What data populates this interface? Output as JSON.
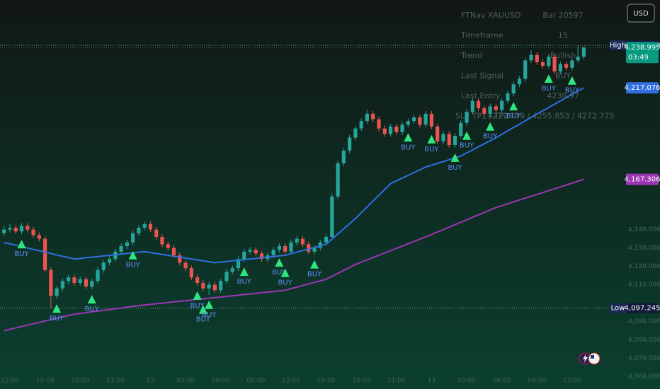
{
  "chart_data": {
    "type": "candlestick",
    "ylim": [
      4053.3,
      4264.85
    ],
    "yticks": [
      {
        "value": 4060,
        "label": "4,060.000"
      },
      {
        "value": 4070,
        "label": "4,070.000"
      },
      {
        "value": 4080,
        "label": "4,080.000"
      },
      {
        "value": 4090,
        "label": "4,090.000"
      },
      {
        "value": 4110,
        "label": "4,110.000"
      },
      {
        "value": 4120,
        "label": "4,120.000"
      },
      {
        "value": 4130,
        "label": "4,130.000"
      },
      {
        "value": 4140,
        "label": "4,140.000"
      }
    ],
    "grid": false,
    "up_color": "#26a69a",
    "down_color": "#ef5350",
    "categories": [
      null,
      "12:00",
      null,
      null,
      null,
      null,
      null,
      "15:00",
      null,
      null,
      null,
      null,
      null,
      "18:00",
      null,
      null,
      null,
      null,
      null,
      "21:00",
      null,
      null,
      null,
      null,
      null,
      "12",
      null,
      null,
      null,
      null,
      null,
      "03:00",
      null,
      null,
      null,
      null,
      null,
      "06:00",
      null,
      null,
      null,
      null,
      null,
      "09:00",
      null,
      null,
      null,
      null,
      null,
      "12:00",
      null,
      null,
      null,
      null,
      null,
      "15:00",
      null,
      null,
      null,
      null,
      null,
      "18:00",
      null,
      null,
      null,
      null,
      null,
      "21:00",
      null,
      null,
      null,
      null,
      null,
      "13",
      null,
      null,
      null,
      null,
      null,
      "03:00",
      null,
      null,
      null,
      null,
      null,
      "06:00",
      null,
      null,
      null,
      null,
      null,
      "09:00",
      null,
      null,
      null,
      null,
      null,
      "12:00",
      null,
      null
    ],
    "candles": [
      [
        4138,
        4142,
        4136.5,
        4140
      ],
      [
        4140,
        4143,
        4138.5,
        4141
      ],
      [
        4141,
        4142.5,
        4137.5,
        4139
      ],
      [
        4139,
        4143.5,
        4137.5,
        4142
      ],
      [
        4142,
        4143.5,
        4138.5,
        4140
      ],
      [
        4140,
        4141.5,
        4135.5,
        4137
      ],
      [
        4137,
        4138.5,
        4133.5,
        4135
      ],
      [
        4135,
        4136.5,
        4116.5,
        4118
      ],
      [
        4118,
        4119.5,
        4097.245,
        4104
      ],
      [
        4104,
        4109.5,
        4102.5,
        4108
      ],
      [
        4108,
        4113.5,
        4106.5,
        4112
      ],
      [
        4112,
        4115.5,
        4110.5,
        4114
      ],
      [
        4114,
        4115.5,
        4109.5,
        4111
      ],
      [
        4111,
        4114.5,
        4109.5,
        4113
      ],
      [
        4113,
        4114.5,
        4107.5,
        4109
      ],
      [
        4109,
        4113.5,
        4107.5,
        4112
      ],
      [
        4112,
        4119.5,
        4110.5,
        4118
      ],
      [
        4118,
        4123.5,
        4116.5,
        4122
      ],
      [
        4122,
        4125.5,
        4120.5,
        4124
      ],
      [
        4124,
        4129.5,
        4122.5,
        4128
      ],
      [
        4128,
        4132.5,
        4126.5,
        4131
      ],
      [
        4131,
        4134.5,
        4129.5,
        4133
      ],
      [
        4133,
        4139.5,
        4131.5,
        4138
      ],
      [
        4138,
        4142.5,
        4136.5,
        4141
      ],
      [
        4141,
        4144.5,
        4139.5,
        4143
      ],
      [
        4143,
        4144.5,
        4138.5,
        4140
      ],
      [
        4140,
        4141.5,
        4134.5,
        4136
      ],
      [
        4136,
        4137.5,
        4130.5,
        4132
      ],
      [
        4132,
        4133.5,
        4128.5,
        4130
      ],
      [
        4130,
        4131.5,
        4124.5,
        4126
      ],
      [
        4126,
        4127.5,
        4120.5,
        4122
      ],
      [
        4122,
        4123.5,
        4117.5,
        4119
      ],
      [
        4119,
        4120.5,
        4112.5,
        4114
      ],
      [
        4114,
        4115.5,
        4109.5,
        4111
      ],
      [
        4111,
        4112.5,
        4106.5,
        4108
      ],
      [
        4108,
        4111.5,
        4104.5,
        4110
      ],
      [
        4110,
        4111.5,
        4105.5,
        4107
      ],
      [
        4107,
        4113.5,
        4105.5,
        4112
      ],
      [
        4112,
        4118.5,
        4110.5,
        4117
      ],
      [
        4117,
        4120.5,
        4115.5,
        4119
      ],
      [
        4119,
        4125.5,
        4117.5,
        4124
      ],
      [
        4124,
        4129.5,
        4122.5,
        4128
      ],
      [
        4128,
        4130.5,
        4126.5,
        4129
      ],
      [
        4129,
        4130.5,
        4125.5,
        4127
      ],
      [
        4127,
        4128.5,
        4122.5,
        4124
      ],
      [
        4124,
        4127.5,
        4122.5,
        4126
      ],
      [
        4126,
        4130.5,
        4124.5,
        4129
      ],
      [
        4129,
        4132.5,
        4127.5,
        4131
      ],
      [
        4131,
        4132.5,
        4126.5,
        4128
      ],
      [
        4128,
        4134.5,
        4126.5,
        4133
      ],
      [
        4133,
        4136.5,
        4131.5,
        4135
      ],
      [
        4135,
        4136.5,
        4130.5,
        4132
      ],
      [
        4132,
        4133.5,
        4126.5,
        4128
      ],
      [
        4128,
        4131.5,
        4126.5,
        4130
      ],
      [
        4130,
        4134.5,
        4128.5,
        4133
      ],
      [
        4133,
        4137.5,
        4131.5,
        4136
      ],
      [
        4136,
        4159.5,
        4134.5,
        4158
      ],
      [
        4158,
        4177.5,
        4156.5,
        4176
      ],
      [
        4176,
        4184.5,
        4174.5,
        4183
      ],
      [
        4183,
        4191.5,
        4181.5,
        4190
      ],
      [
        4190,
        4196.5,
        4188.5,
        4195
      ],
      [
        4195,
        4200.5,
        4193.5,
        4199
      ],
      [
        4199,
        4205,
        4197.5,
        4203
      ],
      [
        4203,
        4204.5,
        4198.5,
        4200
      ],
      [
        4200,
        4201.5,
        4193.5,
        4195
      ],
      [
        4195,
        4196.5,
        4190.5,
        4192
      ],
      [
        4192,
        4197.5,
        4190.5,
        4196
      ],
      [
        4196,
        4197.5,
        4191.5,
        4193
      ],
      [
        4193,
        4198.5,
        4191.5,
        4197
      ],
      [
        4197,
        4200.5,
        4195.5,
        4199
      ],
      [
        4199,
        4202.5,
        4197.5,
        4201
      ],
      [
        4201,
        4202.5,
        4195.5,
        4197
      ],
      [
        4197,
        4204.5,
        4195.5,
        4203
      ],
      [
        4203,
        4204.5,
        4194.5,
        4196
      ],
      [
        4196,
        4197.5,
        4186.5,
        4188
      ],
      [
        4188,
        4193.5,
        4186.5,
        4192
      ],
      [
        4192,
        4193.5,
        4184.5,
        4186
      ],
      [
        4186,
        4192.5,
        4184.5,
        4191
      ],
      [
        4191,
        4199.5,
        4189.5,
        4198
      ],
      [
        4198,
        4205.5,
        4196.5,
        4204
      ],
      [
        4204,
        4211.5,
        4202.5,
        4210
      ],
      [
        4210,
        4211.5,
        4204.5,
        4206
      ],
      [
        4206,
        4207.5,
        4201.5,
        4203
      ],
      [
        4203,
        4208.5,
        4201.5,
        4207
      ],
      [
        4207,
        4208.5,
        4203.5,
        4205
      ],
      [
        4205,
        4211.5,
        4203.5,
        4210
      ],
      [
        4210,
        4215.5,
        4208.5,
        4214
      ],
      [
        4214,
        4220.5,
        4212.5,
        4219
      ],
      [
        4219,
        4223.5,
        4217.5,
        4222
      ],
      [
        4222,
        4233.5,
        4220.5,
        4232
      ],
      [
        4232,
        4237.5,
        4230.5,
        4235
      ],
      [
        4235,
        4236.5,
        4229.5,
        4231
      ],
      [
        4231,
        4232.5,
        4227.5,
        4229
      ],
      [
        4229,
        4235.5,
        4227.5,
        4234
      ],
      [
        4234,
        4235.5,
        4224.5,
        4226
      ],
      [
        4226,
        4231.5,
        4224.5,
        4230
      ],
      [
        4230,
        4231.5,
        4226.5,
        4228
      ],
      [
        4228,
        4233.5,
        4226.5,
        4232
      ],
      [
        4232,
        4240.24,
        4230.5,
        4234
      ],
      [
        4234,
        4239.5,
        4232.5,
        4238.995
      ]
    ],
    "series": [
      {
        "color": "#2f6fe0",
        "last_label": "4,217.076",
        "values": [
          4133,
          4132.2,
          4131.5,
          4130.8,
          4130,
          4129.2,
          4128.5,
          4127.8,
          4127,
          4126.2,
          4125.5,
          4124.8,
          4124,
          4124.3,
          4124.7,
          4125,
          4125.3,
          4125.7,
          4126,
          4126.3,
          4126.7,
          4127,
          4127.3,
          4127.7,
          4128,
          4127.5,
          4127,
          4126.5,
          4126,
          4125.5,
          4125,
          4124.5,
          4124,
          4123.5,
          4123,
          4122.5,
          4122,
          4122.3,
          4122.7,
          4123,
          4123.3,
          4123.7,
          4124,
          4124.3,
          4124.7,
          4125,
          4125.3,
          4125.7,
          4126,
          4126.9,
          4127.7,
          4128.6,
          4129.4,
          4130.3,
          4131.1,
          4132,
          4134.8,
          4137.6,
          4140.4,
          4143.2,
          4146,
          4149.2,
          4152.3,
          4155.5,
          4158.7,
          4161.8,
          4165,
          4166.5,
          4168,
          4169.5,
          4171,
          4172.5,
          4174,
          4175,
          4176,
          4177,
          4178,
          4179,
          4180,
          4181.7,
          4183.3,
          4185,
          4186.7,
          4188.3,
          4190,
          4191.8,
          4193.7,
          4195.5,
          4197.3,
          4199.2,
          4201,
          4202.8,
          4204.6,
          4206.4,
          4208.2,
          4210,
          4211.8,
          4213.6,
          4215.4,
          4217.076
        ]
      },
      {
        "color": "#9c36b5",
        "last_label": "4,167.306",
        "values": [
          4085,
          4085.8,
          4086.5,
          4087.3,
          4088,
          4088.8,
          4089.5,
          4090.3,
          4091,
          4091.8,
          4092.5,
          4093.3,
          4094,
          4094.4,
          4094.8,
          4095.3,
          4095.7,
          4096.1,
          4096.5,
          4096.9,
          4097.3,
          4097.8,
          4098.2,
          4098.6,
          4099,
          4099.3,
          4099.7,
          4100,
          4100.3,
          4100.7,
          4101,
          4101.3,
          4101.7,
          4102,
          4102.3,
          4102.7,
          4103,
          4103.3,
          4103.7,
          4104,
          4104.3,
          4104.7,
          4105,
          4105.3,
          4105.7,
          4106,
          4106.3,
          4106.7,
          4107,
          4107.9,
          4108.7,
          4109.6,
          4110.4,
          4111.3,
          4112.1,
          4113,
          4114.6,
          4116.2,
          4117.8,
          4119.4,
          4121,
          4122.3,
          4123.5,
          4124.8,
          4126,
          4127.3,
          4128.5,
          4129.8,
          4131,
          4132.3,
          4133.5,
          4134.8,
          4136,
          4137.3,
          4138.7,
          4140,
          4141.3,
          4142.7,
          4144,
          4145.3,
          4146.7,
          4148,
          4149.3,
          4150.7,
          4152,
          4153,
          4154,
          4155.1,
          4156.1,
          4157.1,
          4158.1,
          4159.1,
          4160.1,
          4161.2,
          4162.2,
          4163.2,
          4164.2,
          4165.3,
          4166.3,
          4167.306
        ]
      }
    ],
    "signal_label": "BUY",
    "signal_color": "#2ee57f",
    "signal_text_color": "#5b8def",
    "buy_signals": [
      3,
      9,
      15,
      22,
      33,
      34,
      35,
      41,
      47,
      48,
      53,
      69,
      73,
      77,
      79,
      83,
      87,
      93,
      97
    ],
    "high": {
      "name": "High",
      "value": 4240.24,
      "label": "4,240.240"
    },
    "low": {
      "name": "Low",
      "value": 4097.245,
      "label": "4,097.245"
    },
    "last_price": {
      "value": 4238.995,
      "label": "4,238.995",
      "countdown": "03:49"
    }
  },
  "info_panel": {
    "rows": [
      [
        "FTNav XAUUSD",
        "Bar 20597"
      ],
      [
        "Timeframe",
        "15"
      ],
      [
        "Trend",
        "Bullish"
      ],
      [
        "Last Signal",
        "BUY"
      ],
      [
        "Last Entry",
        "4230.97"
      ],
      [
        "SL / TP1 / TP2",
        "4217.779 / 4255.853 / 4272.775"
      ]
    ]
  },
  "toolbar": {
    "currency": "USD"
  }
}
